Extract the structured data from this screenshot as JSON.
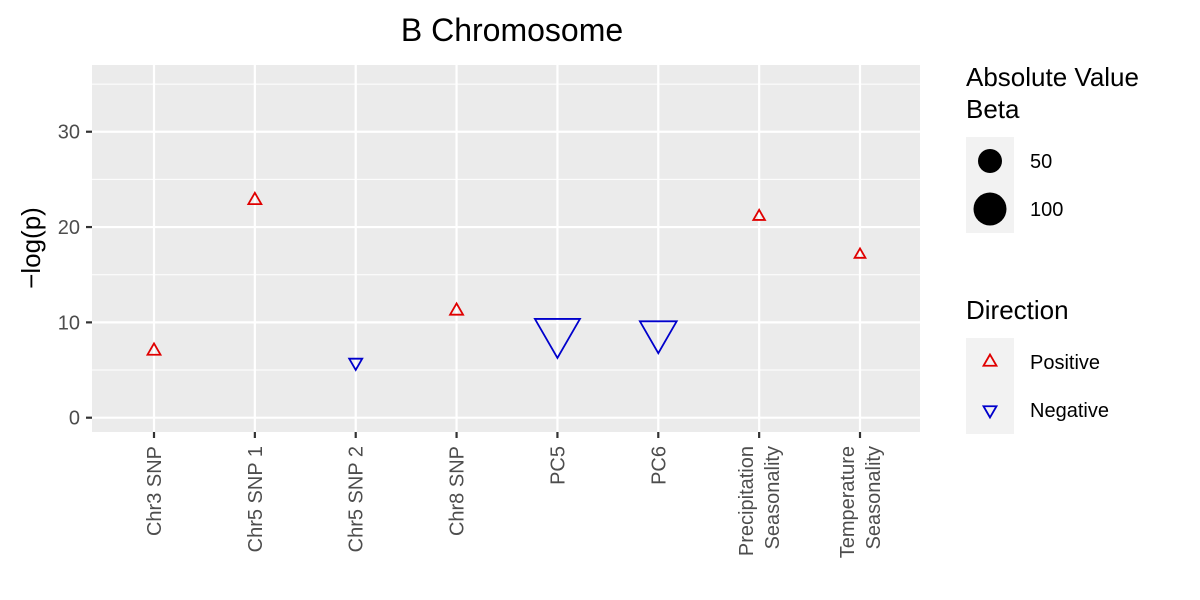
{
  "chart_data": {
    "type": "scatter",
    "title": "B Chromosome",
    "xlabel": "",
    "ylabel": "−log(p)",
    "ylim": [
      -1.5,
      37
    ],
    "yticks": [
      0,
      10,
      20,
      30
    ],
    "grid": true,
    "legend_position": "right",
    "categories": [
      [
        "Chr3 SNP"
      ],
      [
        "Chr5 SNP 1"
      ],
      [
        "Chr5 SNP 2"
      ],
      [
        "Chr8 SNP"
      ],
      [
        "PC5"
      ],
      [
        "PC6"
      ],
      [
        "Precipitation",
        "Seasonality"
      ],
      [
        "Temperature",
        "Seasonality"
      ]
    ],
    "points": [
      {
        "y": 7.0,
        "abs_beta": 10,
        "direction": "Positive"
      },
      {
        "y": 22.8,
        "abs_beta": 10,
        "direction": "Positive"
      },
      {
        "y": 5.8,
        "abs_beta": 10,
        "direction": "Negative"
      },
      {
        "y": 11.2,
        "abs_beta": 10,
        "direction": "Positive"
      },
      {
        "y": 9.0,
        "abs_beta": 120,
        "direction": "Negative"
      },
      {
        "y": 9.0,
        "abs_beta": 80,
        "direction": "Negative"
      },
      {
        "y": 21.1,
        "abs_beta": 8,
        "direction": "Positive"
      },
      {
        "y": 17.1,
        "abs_beta": 7,
        "direction": "Positive"
      }
    ],
    "legend_size": {
      "title_lines": [
        "Absolute Value",
        " Beta"
      ],
      "items": [
        {
          "label": "50",
          "value": 50
        },
        {
          "label": "100",
          "value": 100
        }
      ]
    },
    "legend_direction": {
      "title": "Direction",
      "items": [
        {
          "label": "Positive",
          "color": "#e00000"
        },
        {
          "label": "Negative",
          "color": "#0000cc"
        }
      ]
    }
  }
}
